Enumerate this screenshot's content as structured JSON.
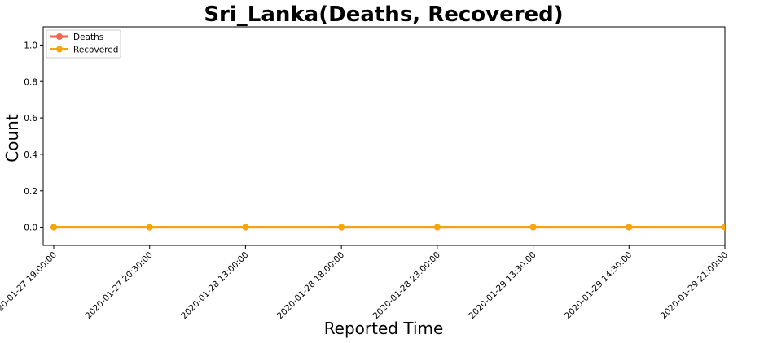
{
  "chart_data": {
    "type": "line",
    "title": "Sri_Lanka(Deaths, Recovered)",
    "xlabel": "Reported Time",
    "ylabel": "Count",
    "categories": [
      "2020-01-27 19:00:00",
      "2020-01-27 20:30:00",
      "2020-01-28 13:00:00",
      "2020-01-28 18:00:00",
      "2020-01-28 23:00:00",
      "2020-01-29 13:30:00",
      "2020-01-29 14:30:00",
      "2020-01-29 21:00:00"
    ],
    "series": [
      {
        "name": "Deaths",
        "color": "#f4634c",
        "values": [
          0,
          0,
          0,
          0,
          0,
          0,
          0,
          0
        ]
      },
      {
        "name": "Recovered",
        "color": "#f4a60a",
        "values": [
          0,
          0,
          0,
          0,
          0,
          0,
          0,
          0
        ]
      }
    ],
    "ylim": [
      -0.1,
      1.1
    ],
    "yticks": [
      "0.0",
      "0.2",
      "0.4",
      "0.6",
      "0.8",
      "1.0"
    ],
    "grid": false,
    "legend_position": "top-left"
  }
}
